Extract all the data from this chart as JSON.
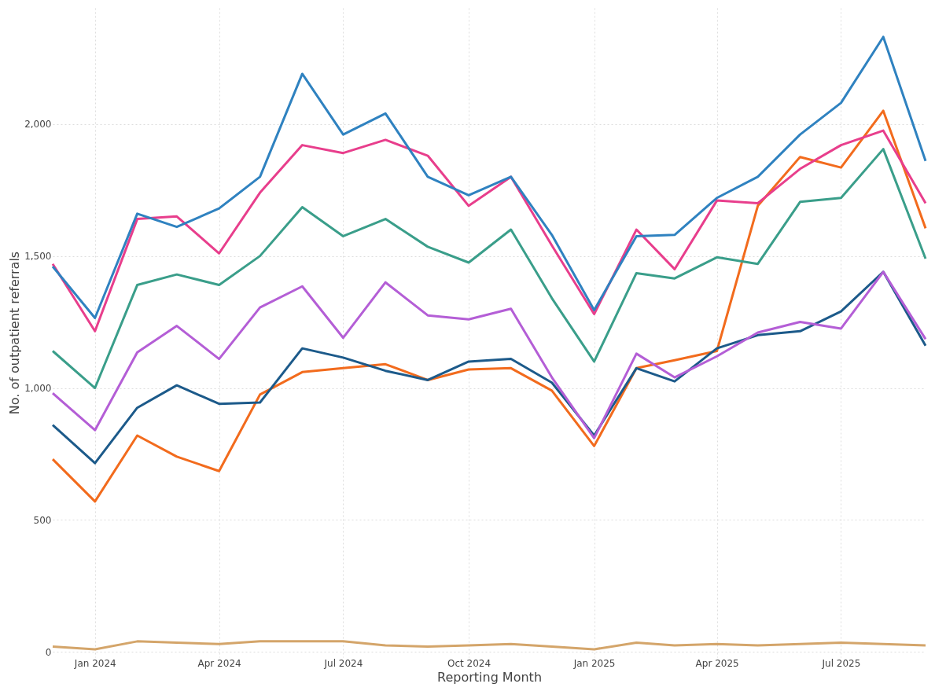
{
  "chart_data": {
    "type": "line",
    "xlabel": "Reporting Month",
    "ylabel": "No. of outpatient referrals",
    "x": [
      "2023-12",
      "2024-01",
      "2024-02",
      "2024-03",
      "2024-04",
      "2024-05",
      "2024-06",
      "2024-07",
      "2024-08",
      "2024-09",
      "2024-10",
      "2024-11",
      "2024-12",
      "2025-01",
      "2025-02",
      "2025-03",
      "2025-04",
      "2025-05",
      "2025-06",
      "2025-07",
      "2025-08",
      "2025-09"
    ],
    "series": [
      {
        "color": "#d4a56a",
        "values": [
          20,
          10,
          40,
          35,
          30,
          40,
          40,
          40,
          25,
          20,
          25,
          30,
          20,
          10,
          35,
          25,
          30,
          25,
          30,
          35,
          30,
          25
        ]
      },
      {
        "color": "#f26b1d",
        "values": [
          730,
          570,
          820,
          740,
          685,
          975,
          1060,
          1075,
          1090,
          1030,
          1070,
          1075,
          990,
          780,
          1075,
          1105,
          1140,
          1690,
          1875,
          1835,
          2050,
          1605
        ]
      },
      {
        "color": "#1c5a8a",
        "values": [
          860,
          715,
          925,
          1010,
          940,
          945,
          1150,
          1115,
          1065,
          1030,
          1100,
          1110,
          1020,
          820,
          1075,
          1025,
          1150,
          1200,
          1215,
          1290,
          1440,
          1160
        ]
      },
      {
        "color": "#b45ed6",
        "values": [
          980,
          840,
          1135,
          1235,
          1110,
          1305,
          1385,
          1190,
          1400,
          1275,
          1260,
          1300,
          1040,
          810,
          1130,
          1040,
          1120,
          1210,
          1250,
          1225,
          1440,
          1185
        ]
      },
      {
        "color": "#3a9e8a",
        "values": [
          1140,
          1000,
          1390,
          1430,
          1390,
          1500,
          1685,
          1575,
          1640,
          1535,
          1475,
          1600,
          1340,
          1100,
          1435,
          1415,
          1495,
          1470,
          1705,
          1720,
          1905,
          1490
        ]
      },
      {
        "color": "#e83e8c",
        "values": [
          1470,
          1215,
          1640,
          1650,
          1510,
          1740,
          1920,
          1890,
          1940,
          1880,
          1690,
          1800,
          1540,
          1280,
          1600,
          1450,
          1710,
          1700,
          1830,
          1920,
          1975,
          1700
        ]
      },
      {
        "color": "#2f82c0",
        "values": [
          1460,
          1265,
          1660,
          1610,
          1680,
          1800,
          2190,
          1960,
          2040,
          1800,
          1730,
          1800,
          1580,
          1295,
          1575,
          1580,
          1720,
          1800,
          1960,
          2080,
          2330,
          1860
        ]
      }
    ],
    "xlim": [
      "2023-12",
      "2025-09"
    ],
    "xticks": [
      {
        "value": "2024-01",
        "label": "Jan 2024"
      },
      {
        "value": "2024-04",
        "label": "Apr 2024"
      },
      {
        "value": "2024-07",
        "label": "Jul 2024"
      },
      {
        "value": "2024-10",
        "label": "Oct 2024"
      },
      {
        "value": "2025-01",
        "label": "Jan 2025"
      },
      {
        "value": "2025-04",
        "label": "Apr 2025"
      },
      {
        "value": "2025-07",
        "label": "Jul 2025"
      }
    ],
    "ylim": [
      -20,
      2440
    ],
    "yticks": [
      {
        "value": 0,
        "label": "0"
      },
      {
        "value": 500,
        "label": "500"
      },
      {
        "value": 1000,
        "label": "1,000"
      },
      {
        "value": 1500,
        "label": "1,500"
      },
      {
        "value": 2000,
        "label": "2,000"
      }
    ],
    "grid": true,
    "marker": "none",
    "line_style": "solid"
  }
}
